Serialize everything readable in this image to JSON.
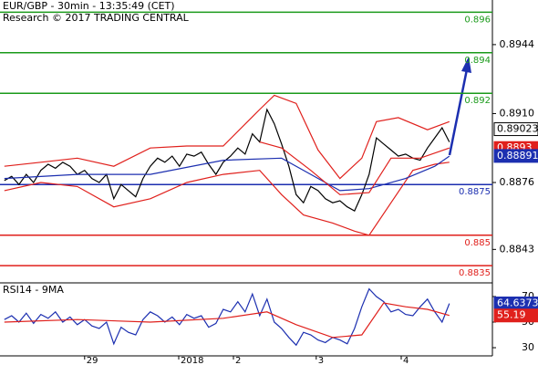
{
  "chart_data": [
    {
      "type": "line",
      "title": "EUR/GBP - 30min - 13:35:49 (CET)",
      "subtitle": "Research © 2017 TRADING CENTRAL",
      "xlim": [
        -0.6,
        66.9
      ],
      "ylim": [
        0.88265,
        0.8966
      ],
      "xticks": [
        {
          "value": 11,
          "label": "29"
        },
        {
          "value": 23.9,
          "label": "2018"
        },
        {
          "value": 31.4,
          "label": "2"
        },
        {
          "value": 42.75,
          "label": "3"
        },
        {
          "value": 54.4,
          "label": "4"
        }
      ],
      "yticks": [
        0.8944,
        {
          "value": 0.891,
          "label": "0.8910"
        },
        0.8876,
        0.8843
      ],
      "levels": [
        {
          "value": 0.896,
          "color": "#1a9a1a"
        },
        {
          "value": 0.894,
          "color": "#1a9a1a"
        },
        {
          "value": 0.892,
          "color": "#1a9a1a"
        },
        {
          "value": 0.8875,
          "color": "#1c2fb0"
        },
        {
          "value": 0.885,
          "color": "#e0201c"
        },
        {
          "value": 0.8835,
          "color": "#e0201c"
        }
      ],
      "markers": [
        {
          "value": 0.89023,
          "color": "#ffffff"
        },
        {
          "value": 0.8893,
          "color": "#e0201c"
        },
        {
          "value": 0.88891,
          "color": "#1c2fb0"
        }
      ],
      "series": [
        {
          "color": "#000000",
          "x": [
            0,
            1,
            2,
            3,
            4,
            5,
            6,
            7,
            8,
            9,
            10,
            11,
            12,
            13,
            14,
            15,
            16,
            17,
            18,
            19,
            20,
            21,
            22,
            23,
            24,
            25,
            26,
            27,
            28,
            29,
            30,
            31,
            32,
            33,
            34,
            35,
            36,
            37,
            38,
            39,
            40,
            41,
            42,
            43,
            44,
            45,
            46,
            47,
            48,
            49,
            50,
            51,
            52,
            53,
            54,
            55,
            56,
            57,
            58,
            59,
            60,
            61
          ],
          "values": [
            0.8877,
            0.8879,
            0.8875,
            0.888,
            0.8876,
            0.8882,
            0.8885,
            0.8883,
            0.8886,
            0.8884,
            0.888,
            0.8882,
            0.8878,
            0.8876,
            0.888,
            0.8868,
            0.8875,
            0.8872,
            0.8869,
            0.8878,
            0.8884,
            0.8888,
            0.8886,
            0.8889,
            0.8884,
            0.889,
            0.8889,
            0.8891,
            0.8885,
            0.888,
            0.8886,
            0.8889,
            0.8893,
            0.889,
            0.89,
            0.8896,
            0.8912,
            0.8905,
            0.8895,
            0.8884,
            0.887,
            0.8866,
            0.8874,
            0.8872,
            0.8868,
            0.8866,
            0.8867,
            0.8864,
            0.8862,
            0.887,
            0.888,
            0.8898,
            0.8895,
            0.8892,
            0.8889,
            0.889,
            0.8888,
            0.8887,
            0.8893,
            0.8898,
            0.8903,
            0.8896
          ]
        },
        {
          "color": "#e0201c",
          "x": [
            0,
            5,
            10,
            15,
            20,
            25,
            30,
            35,
            37,
            40,
            43,
            46,
            49,
            51,
            54,
            58,
            61
          ],
          "values": [
            0.8884,
            0.8886,
            0.8888,
            0.8884,
            0.8893,
            0.8894,
            0.8894,
            0.8912,
            0.8919,
            0.8915,
            0.8892,
            0.8878,
            0.8888,
            0.8906,
            0.8908,
            0.8902,
            0.8906
          ]
        },
        {
          "color": "#e0201c",
          "x": [
            0,
            5,
            10,
            15,
            20,
            25,
            30,
            35,
            38,
            41,
            45,
            48,
            50,
            53,
            56,
            59,
            61
          ],
          "values": [
            0.8872,
            0.8876,
            0.8874,
            0.8864,
            0.8868,
            0.8876,
            0.888,
            0.8882,
            0.887,
            0.886,
            0.8856,
            0.8852,
            0.885,
            0.8866,
            0.8882,
            0.8885,
            0.8886
          ]
        },
        {
          "color": "#1c2fb0",
          "x": [
            0,
            10,
            20,
            30,
            38,
            42,
            46,
            50,
            55,
            59,
            61
          ],
          "values": [
            0.8878,
            0.888,
            0.888,
            0.8887,
            0.8888,
            0.888,
            0.8872,
            0.8873,
            0.8878,
            0.8884,
            0.8889
          ]
        },
        {
          "color": "#e0201c",
          "x": [
            35,
            38,
            42,
            46,
            50,
            53,
            57,
            61
          ],
          "values": [
            0.8896,
            0.8893,
            0.8882,
            0.887,
            0.8871,
            0.8888,
            0.8888,
            0.8893
          ]
        }
      ]
    },
    {
      "type": "line",
      "title": "RSI14 - 9MA",
      "xlim": [
        -0.6,
        66.9
      ],
      "ylim": [
        23.6,
        80.7
      ],
      "yticks": [
        70,
        50,
        30
      ],
      "markers": [
        {
          "value": 64.6373,
          "color": "#1c2fb0"
        },
        {
          "value": 55.19,
          "color": "#e0201c"
        }
      ],
      "series": [
        {
          "color": "#1c2fb0",
          "x": [
            0,
            1,
            2,
            3,
            4,
            5,
            6,
            7,
            8,
            9,
            10,
            11,
            12,
            13,
            14,
            15,
            16,
            17,
            18,
            19,
            20,
            21,
            22,
            23,
            24,
            25,
            26,
            27,
            28,
            29,
            30,
            31,
            32,
            33,
            34,
            35,
            36,
            37,
            38,
            39,
            40,
            41,
            42,
            43,
            44,
            45,
            46,
            47,
            48,
            49,
            50,
            51,
            52,
            53,
            54,
            55,
            56,
            57,
            58,
            59,
            60,
            61
          ],
          "values": [
            52,
            55,
            50,
            57,
            49,
            56,
            53,
            58,
            50,
            54,
            48,
            52,
            47,
            45,
            50,
            33,
            46,
            42,
            40,
            52,
            58,
            55,
            50,
            54,
            48,
            56,
            53,
            55,
            46,
            49,
            60,
            58,
            66,
            58,
            72,
            55,
            68,
            50,
            45,
            38,
            32,
            42,
            40,
            36,
            34,
            38,
            36,
            33,
            45,
            62,
            76,
            70,
            66,
            58,
            60,
            56,
            55,
            62,
            68,
            58,
            50,
            64.6
          ]
        },
        {
          "color": "#e0201c",
          "x": [
            0,
            10,
            20,
            30,
            36,
            40,
            45,
            49,
            52,
            55,
            58,
            61
          ],
          "values": [
            50,
            52,
            50,
            53,
            58,
            48,
            38,
            40,
            65,
            62,
            60,
            55.19
          ]
        }
      ]
    }
  ]
}
